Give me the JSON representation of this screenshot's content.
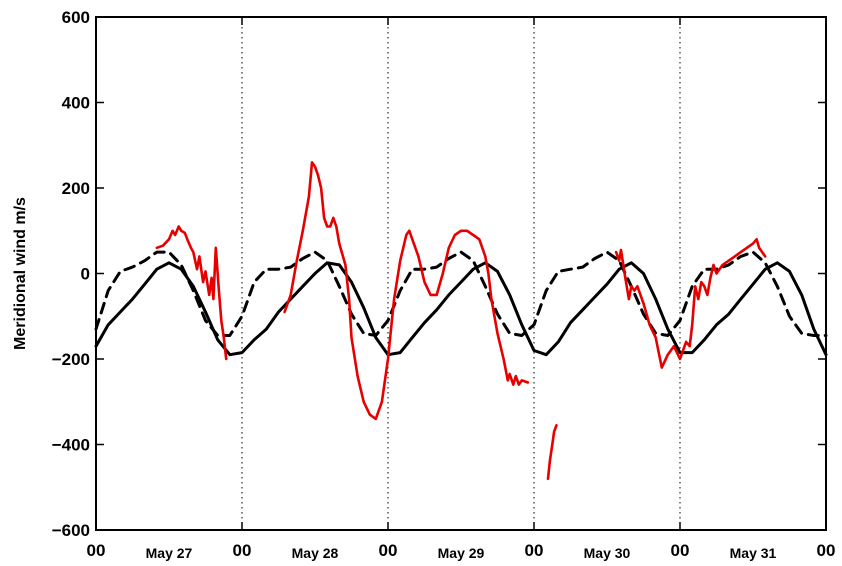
{
  "chart_data": {
    "type": "line",
    "title": "",
    "xlabel": "",
    "ylabel": "Meridional wind  m/s",
    "xlim": [
      0,
      120
    ],
    "ylim": [
      -600,
      600
    ],
    "y_ticks": [
      -600,
      -400,
      -200,
      0,
      200,
      400,
      600
    ],
    "y_tick_labels": [
      "−600",
      "−400",
      "−200",
      "0",
      "200",
      "400",
      "600"
    ],
    "x_hour_ticks": [
      0,
      24,
      48,
      72,
      96,
      120
    ],
    "x_hour_labels": [
      "00",
      "00",
      "00",
      "00",
      "00",
      "00"
    ],
    "x_day_ticks": [
      12,
      36,
      60,
      84,
      108
    ],
    "x_day_labels": [
      "May 27",
      "May 28",
      "May 29",
      "May 30",
      "May 31"
    ],
    "day_separators_dotted": [
      24,
      48,
      72,
      96
    ],
    "grid": false,
    "legend": "none",
    "series": [
      {
        "style": "solid",
        "color": "#000000",
        "x": [
          0,
          2,
          4,
          6,
          8,
          10,
          12,
          14,
          16,
          18,
          20,
          22,
          24,
          26,
          28,
          30,
          32,
          34,
          36,
          38,
          40,
          42,
          44,
          46,
          48,
          50,
          52,
          54,
          56,
          58,
          60,
          62,
          64,
          66,
          68,
          70,
          72,
          74,
          76,
          78,
          80,
          82,
          84,
          86,
          88,
          90,
          92,
          94,
          96,
          98,
          100,
          102,
          104,
          106,
          108,
          110,
          112,
          114,
          116,
          118,
          120
        ],
        "y": [
          -170,
          -120,
          -90,
          -60,
          -25,
          10,
          25,
          10,
          -30,
          -90,
          -155,
          -190,
          -185,
          -155,
          -130,
          -90,
          -60,
          -30,
          0,
          25,
          20,
          -20,
          -80,
          -150,
          -190,
          -185,
          -150,
          -115,
          -85,
          -50,
          -20,
          10,
          25,
          5,
          -50,
          -120,
          -180,
          -190,
          -160,
          -115,
          -85,
          -55,
          -25,
          10,
          25,
          0,
          -60,
          -130,
          -185,
          -185,
          -155,
          -120,
          -95,
          -60,
          -25,
          10,
          25,
          5,
          -50,
          -130,
          -190
        ]
      },
      {
        "style": "dashed",
        "color": "#000000",
        "x": [
          0,
          2,
          4,
          6,
          8,
          10,
          12,
          14,
          16,
          18,
          20,
          22,
          24,
          26,
          28,
          30,
          32,
          34,
          36,
          38,
          40,
          42,
          44,
          46,
          48,
          50,
          52,
          54,
          56,
          58,
          60,
          62,
          64,
          66,
          68,
          70,
          72,
          74,
          76,
          78,
          80,
          82,
          84,
          86,
          88,
          90,
          92,
          94,
          96,
          98,
          100,
          102,
          104,
          106,
          108,
          110,
          112,
          114,
          116,
          118,
          120
        ],
        "y": [
          -130,
          -40,
          5,
          15,
          30,
          50,
          50,
          20,
          -40,
          -110,
          -145,
          -145,
          -100,
          -20,
          10,
          10,
          15,
          35,
          50,
          30,
          -30,
          -95,
          -140,
          -145,
          -110,
          -40,
          10,
          10,
          15,
          35,
          50,
          30,
          -30,
          -95,
          -140,
          -145,
          -120,
          -40,
          5,
          10,
          15,
          35,
          50,
          30,
          -30,
          -95,
          -140,
          -145,
          -110,
          -30,
          10,
          10,
          20,
          40,
          50,
          25,
          -30,
          -100,
          -140,
          -145,
          -145
        ]
      },
      {
        "style": "solid",
        "color": "#e60000",
        "segments": [
          {
            "x": [
              10,
              11,
              12,
              12.6,
              13,
              13.6,
              14,
              14.6,
              15,
              15.6,
              16,
              16.6,
              17,
              17.6,
              18,
              18.6,
              19,
              19.3,
              19.7,
              20.2,
              20.6,
              21,
              21.4
            ],
            "y": [
              60,
              65,
              80,
              100,
              90,
              110,
              100,
              95,
              80,
              60,
              50,
              10,
              40,
              -20,
              5,
              -50,
              -10,
              -60,
              60,
              -40,
              -110,
              -150,
              -200
            ]
          },
          {
            "x": [
              31,
              32,
              33,
              34,
              35,
              35.5,
              36,
              36.5,
              37,
              37.5,
              38,
              38.5,
              39,
              39.5,
              40,
              41,
              41.6,
              42,
              43,
              44,
              45,
              46,
              47,
              48,
              48.5,
              49,
              50,
              51,
              51.5,
              52,
              53,
              54,
              55,
              56,
              57,
              58,
              59,
              60,
              61,
              62,
              63,
              64,
              64.5,
              65,
              66,
              67,
              67.7,
              68,
              68.6,
              69,
              69.5,
              70,
              71
            ],
            "y": [
              -90,
              -50,
              30,
              100,
              180,
              260,
              250,
              230,
              200,
              130,
              110,
              110,
              130,
              110,
              70,
              20,
              -60,
              -150,
              -240,
              -300,
              -330,
              -340,
              -300,
              -200,
              -130,
              -60,
              30,
              90,
              100,
              80,
              40,
              -20,
              -50,
              -50,
              0,
              60,
              90,
              100,
              100,
              90,
              80,
              40,
              0,
              -60,
              -140,
              -200,
              -250,
              -235,
              -260,
              -240,
              -260,
              -250,
              -255
            ]
          },
          {
            "x": [
              74.3,
              74.6,
              75,
              75.3,
              75.7
            ],
            "y": [
              -480,
              -440,
              -400,
              -370,
              -355
            ]
          },
          {
            "x": [
              85.5,
              86,
              86.3,
              87,
              87.6,
              88,
              88.5,
              89,
              90,
              91,
              92,
              93,
              94,
              95,
              96,
              97,
              97.6,
              98,
              98.5,
              99,
              99.5,
              100,
              100.5,
              101,
              101.5,
              102,
              102.5,
              103,
              104,
              105,
              106,
              107,
              108,
              108.6,
              109,
              110
            ],
            "y": [
              50,
              30,
              55,
              -10,
              -60,
              -30,
              -40,
              -30,
              -70,
              -120,
              -150,
              -220,
              -190,
              -170,
              -200,
              -160,
              -170,
              -120,
              -30,
              -60,
              -20,
              -30,
              -50,
              -10,
              20,
              0,
              10,
              20,
              30,
              40,
              50,
              60,
              70,
              80,
              60,
              40
            ]
          }
        ]
      }
    ]
  }
}
